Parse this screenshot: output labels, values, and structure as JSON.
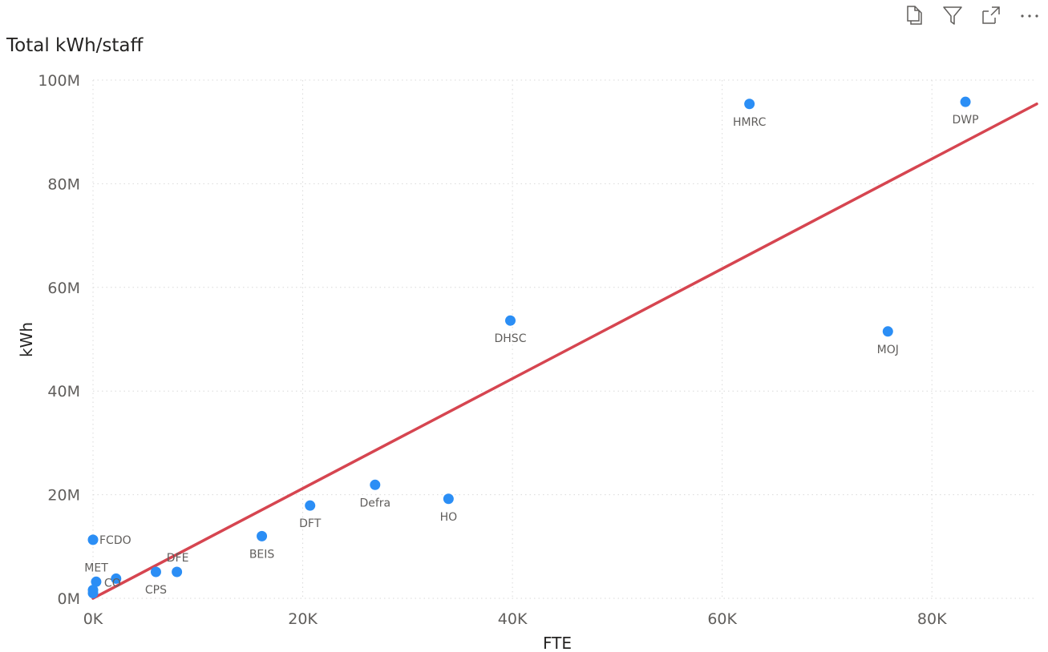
{
  "toolbar": {
    "icons": [
      "copy-icon",
      "filter-icon",
      "focus-mode-icon",
      "more-options-icon"
    ]
  },
  "chart_data": {
    "type": "scatter",
    "title": "Total kWh/staff",
    "xlabel": "FTE",
    "ylabel": "kWh",
    "xlim": [
      0,
      90000
    ],
    "ylim": [
      0,
      100000000
    ],
    "x_ticks": [
      0,
      20000,
      40000,
      60000,
      80000
    ],
    "x_tick_labels": [
      "0K",
      "20K",
      "40K",
      "60K",
      "80K"
    ],
    "y_ticks": [
      0,
      20000000,
      40000000,
      60000000,
      80000000,
      100000000
    ],
    "y_tick_labels": [
      "0M",
      "20M",
      "40M",
      "60M",
      "80M",
      "100M"
    ],
    "grid": true,
    "point_color": "#2b8ef5",
    "trend_color": "#d64550",
    "points": [
      {
        "label": "DWP",
        "x": 83200,
        "y": 95800000
      },
      {
        "label": "HMRC",
        "x": 62600,
        "y": 95400000
      },
      {
        "label": "MOJ",
        "x": 75800,
        "y": 51500000
      },
      {
        "label": "DHSC",
        "x": 39800,
        "y": 53600000
      },
      {
        "label": "Defra",
        "x": 26900,
        "y": 21900000
      },
      {
        "label": "HO",
        "x": 33900,
        "y": 19200000
      },
      {
        "label": "DFT",
        "x": 20700,
        "y": 17900000
      },
      {
        "label": "BEIS",
        "x": 16100,
        "y": 12000000
      },
      {
        "label": "FCDO",
        "x": 0,
        "y": 11300000
      },
      {
        "label": "DFE",
        "x": 8000,
        "y": 5100000
      },
      {
        "label": "CPS",
        "x": 6000,
        "y": 5100000
      },
      {
        "label": "MET",
        "x": 2200,
        "y": 3800000
      },
      {
        "label": "CO",
        "x": 300,
        "y": 3200000
      },
      {
        "label": "",
        "x": 0,
        "y": 1600000
      },
      {
        "label": "",
        "x": 0,
        "y": 1000000
      }
    ],
    "trend_line": {
      "x": [
        0,
        90000
      ],
      "y": [
        0,
        95400000
      ]
    }
  }
}
